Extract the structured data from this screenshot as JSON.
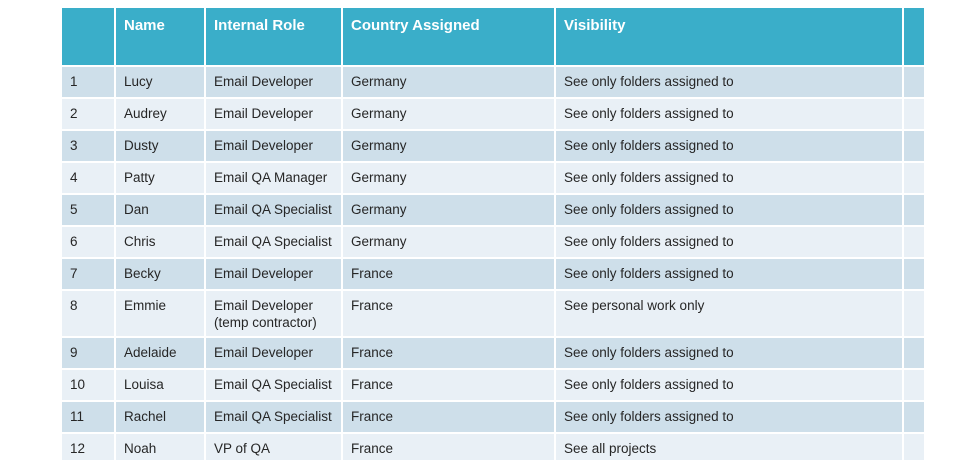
{
  "table": {
    "headers": {
      "num": "",
      "name": "Name",
      "role": "Internal Role",
      "country": "Country Assigned",
      "visibility": "Visibility",
      "spacer": ""
    },
    "rows": [
      {
        "num": "1",
        "name": "Lucy",
        "role": "Email Developer",
        "country": "Germany",
        "visibility": "See only folders assigned to"
      },
      {
        "num": "2",
        "name": "Audrey",
        "role": "Email Developer",
        "country": "Germany",
        "visibility": "See only folders assigned to"
      },
      {
        "num": "3",
        "name": "Dusty",
        "role": "Email Developer",
        "country": "Germany",
        "visibility": "See only folders assigned to"
      },
      {
        "num": "4",
        "name": "Patty",
        "role": "Email QA Manager",
        "country": "Germany",
        "visibility": "See only folders assigned to"
      },
      {
        "num": "5",
        "name": "Dan",
        "role": "Email QA Specialist",
        "country": "Germany",
        "visibility": "See only folders assigned to"
      },
      {
        "num": "6",
        "name": "Chris",
        "role": "Email QA Specialist",
        "country": "Germany",
        "visibility": "See only folders assigned to"
      },
      {
        "num": "7",
        "name": "Becky",
        "role": "Email Developer",
        "country": "France",
        "visibility": "See only folders assigned to"
      },
      {
        "num": "8",
        "name": "Emmie",
        "role": "Email Developer\n(temp contractor)",
        "country": "France",
        "visibility": "See personal work only"
      },
      {
        "num": "9",
        "name": "Adelaide",
        "role": "Email Developer",
        "country": "France",
        "visibility": "See only folders assigned to"
      },
      {
        "num": "10",
        "name": "Louisa",
        "role": "Email QA Specialist",
        "country": "France",
        "visibility": "See only folders assigned to"
      },
      {
        "num": "11",
        "name": "Rachel",
        "role": "Email QA Specialist",
        "country": "France",
        "visibility": "See only folders assigned to"
      },
      {
        "num": "12",
        "name": "Noah",
        "role": "VP of QA",
        "country": "France",
        "visibility": "See all projects"
      }
    ]
  },
  "colors": {
    "header_bg": "#3AAEC9",
    "header_text": "#FFFFFF",
    "row_odd_bg": "#CEDFEA",
    "row_even_bg": "#E9F0F6",
    "body_text": "#262626",
    "grid_line": "#FFFFFF"
  }
}
